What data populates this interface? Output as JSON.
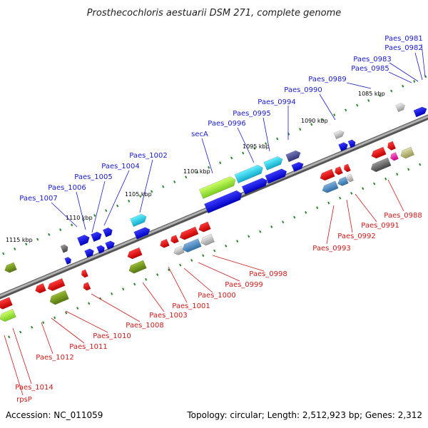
{
  "title": "Prosthecochloris aestuarii DSM 271, complete genome",
  "footer": {
    "accession": "Accession: NC_011059",
    "topology": "Topology: circular; Length: 2,512,923 bp; Genes: 2,312"
  },
  "colors": {
    "forward_label": "#1a1acc",
    "reverse_label": "#cc1a1a",
    "backbone": "#8a8a8a",
    "tick": "#2a8a2a"
  },
  "ticks": [
    {
      "label": "1085 kbp"
    },
    {
      "label": "1090 kbp"
    },
    {
      "label": "1095 kbp"
    },
    {
      "label": "1100 kbp"
    },
    {
      "label": "1105 kbp"
    },
    {
      "label": "1110 kbp"
    },
    {
      "label": "1115 kbp"
    }
  ],
  "forward_labels": [
    {
      "text": "Paes_0981"
    },
    {
      "text": "Paes_0982"
    },
    {
      "text": "Paes_0983"
    },
    {
      "text": "Paes_0985"
    },
    {
      "text": "Paes_0989"
    },
    {
      "text": "Paes_0990"
    },
    {
      "text": "Paes_0994"
    },
    {
      "text": "Paes_0995"
    },
    {
      "text": "Paes_0996"
    },
    {
      "text": "secA"
    },
    {
      "text": "Paes_1002"
    },
    {
      "text": "Paes_1004"
    },
    {
      "text": "Paes_1005"
    },
    {
      "text": "Paes_1006"
    },
    {
      "text": "Paes_1007"
    }
  ],
  "reverse_labels": [
    {
      "text": "Paes_0988"
    },
    {
      "text": "Paes_0991"
    },
    {
      "text": "Paes_0992"
    },
    {
      "text": "Paes_0993"
    },
    {
      "text": "Paes_0998"
    },
    {
      "text": "Paes_0999"
    },
    {
      "text": "Paes_1000"
    },
    {
      "text": "Paes_1001"
    },
    {
      "text": "Paes_1003"
    },
    {
      "text": "Paes_1008"
    },
    {
      "text": "Paes_1010"
    },
    {
      "text": "Paes_1011"
    },
    {
      "text": "Paes_1012"
    },
    {
      "text": "Paes_1014"
    },
    {
      "text": "rpsP"
    }
  ]
}
